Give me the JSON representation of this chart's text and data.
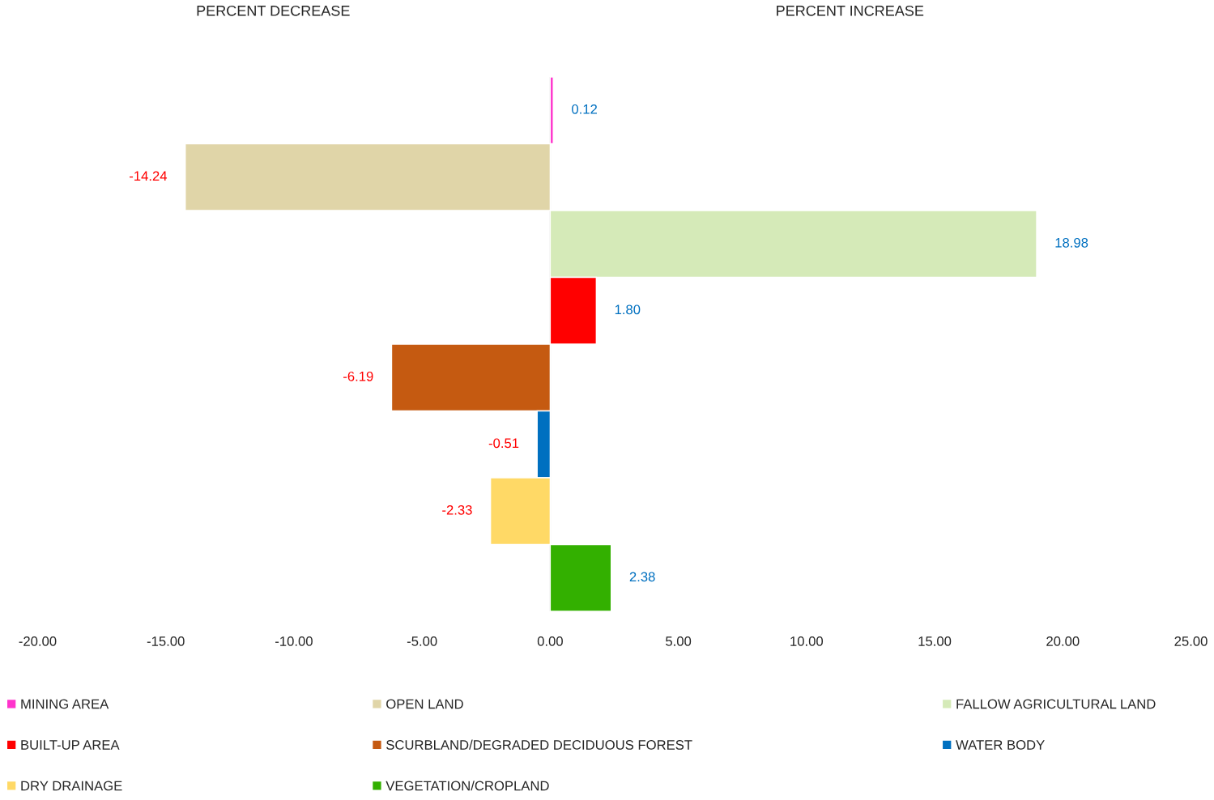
{
  "chart_data": {
    "type": "bar",
    "orientation": "horizontal",
    "categories": [
      null,
      null,
      null,
      null,
      null,
      null,
      null,
      null
    ],
    "series": [
      {
        "name": "MINING AREA",
        "color": "#ff33cc",
        "values": [
          0.12,
          null,
          null,
          null,
          null,
          null,
          null,
          null
        ]
      },
      {
        "name": "OPEN LAND",
        "color": "#e0d5a8",
        "values": [
          null,
          -14.24,
          null,
          null,
          null,
          null,
          null,
          null
        ]
      },
      {
        "name": "FALLOW AGRICULTURAL LAND",
        "color": "#d5eab8",
        "values": [
          null,
          null,
          18.98,
          null,
          null,
          null,
          null,
          null
        ]
      },
      {
        "name": "BUILT-UP AREA",
        "color": "#ff0000",
        "values": [
          null,
          null,
          null,
          1.8,
          null,
          null,
          null,
          null
        ]
      },
      {
        "name": "SCURBLAND/DEGRADED DECIDUOUS FOREST",
        "color": "#c55a11",
        "values": [
          null,
          null,
          null,
          null,
          -6.19,
          null,
          null,
          null
        ]
      },
      {
        "name": "WATER BODY",
        "color": "#0070c0",
        "values": [
          null,
          null,
          null,
          null,
          null,
          -0.51,
          null,
          null
        ]
      },
      {
        "name": "DRY DRAINAGE",
        "color": "#ffd966",
        "values": [
          null,
          null,
          null,
          null,
          null,
          null,
          -2.33,
          null
        ]
      },
      {
        "name": "VEGETATION/CROPLAND",
        "color": "#33b000",
        "values": [
          null,
          null,
          null,
          null,
          null,
          null,
          null,
          2.38
        ]
      }
    ],
    "value_labels": [
      "0.12",
      "-14.24",
      "18.98",
      "1.80",
      "-6.19",
      "-0.51",
      "-2.33",
      "2.38"
    ],
    "xlim": [
      -20,
      25
    ],
    "xticks": [
      {
        "value": -20,
        "label": "-20.00"
      },
      {
        "value": -15,
        "label": "-15.00"
      },
      {
        "value": -10,
        "label": "-10.00"
      },
      {
        "value": -5,
        "label": "-5.00"
      },
      {
        "value": 0,
        "label": "0.00"
      },
      {
        "value": 5,
        "label": "5.00"
      },
      {
        "value": 10,
        "label": "10.00"
      },
      {
        "value": 15,
        "label": "15.00"
      },
      {
        "value": 20,
        "label": "20.00"
      },
      {
        "value": 25,
        "label": "25.00"
      }
    ],
    "annotations": [
      "PERCENT DECREASE",
      "PERCENT INCREASE"
    ],
    "ref_lines": [
      {
        "axis": "x",
        "value": 0,
        "color": "#d9d9d9"
      }
    ],
    "grid": false,
    "legend": "bottom"
  }
}
